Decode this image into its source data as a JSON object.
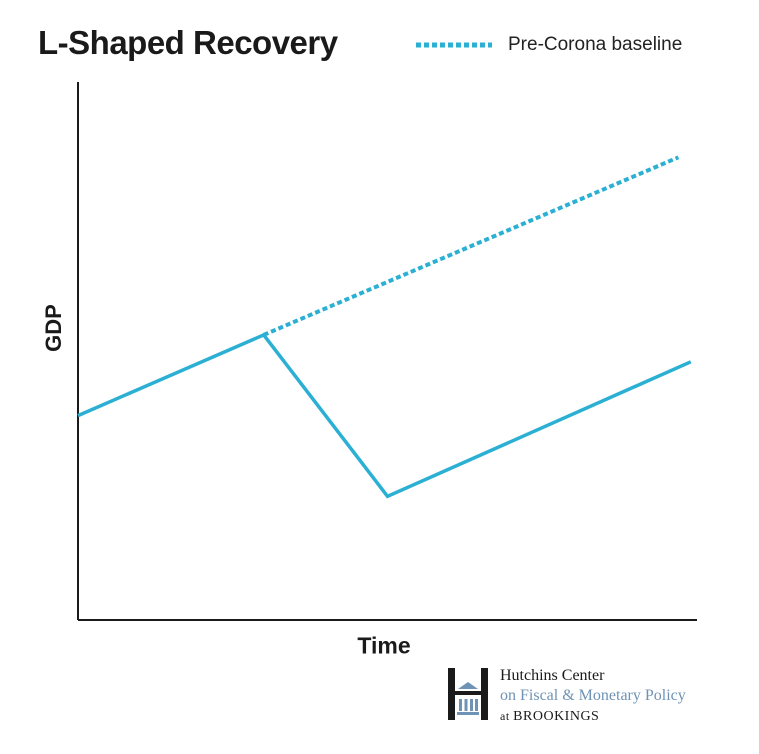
{
  "chart_data": {
    "type": "line",
    "title": "L-Shaped Recovery",
    "xlabel": "Time",
    "ylabel": "GDP",
    "xlim": [
      0,
      10
    ],
    "ylim": [
      0,
      10
    ],
    "grid": false,
    "legend_placement": "top-right",
    "series": [
      {
        "name": "Pre-Corona baseline",
        "style": "dotted",
        "color": "#2bb0d4",
        "x": [
          3,
          9.7
        ],
        "y": [
          5.3,
          8.6
        ]
      },
      {
        "style": "solid",
        "color": "#2bb0d4",
        "x": [
          0,
          3,
          5,
          9.9
        ],
        "y": [
          3.8,
          5.3,
          2.3,
          4.8
        ]
      }
    ]
  },
  "legend": {
    "label": "Pre-Corona baseline"
  },
  "branding": {
    "line1": "Hutchins Center",
    "line2": "on Fiscal & Monetary Policy",
    "line3_prefix": "at ",
    "line3_name": "BROOKINGS"
  },
  "colors": {
    "series": "#2bb0d4",
    "axis": "#1a1a1a",
    "logo_accent": "#6f93b4"
  }
}
